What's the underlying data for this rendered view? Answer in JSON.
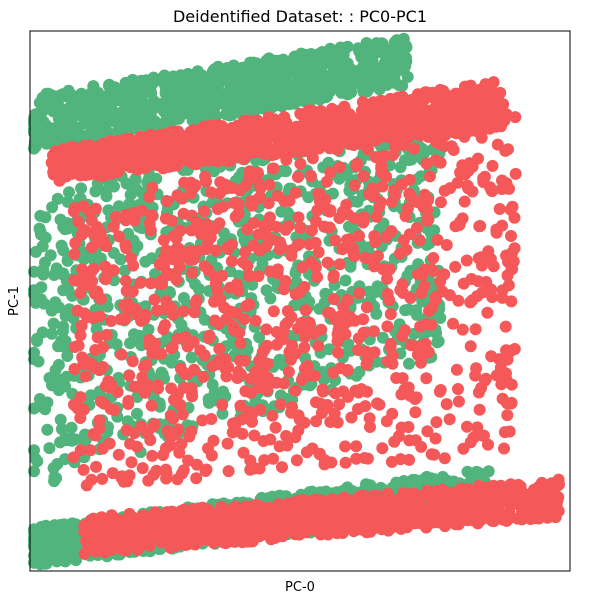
{
  "chart_data": {
    "type": "scatter",
    "title": "Deidentified Dataset: : PC0-PC1",
    "xlabel": "PC-0",
    "ylabel": "PC-1",
    "xlim": [
      0,
      100
    ],
    "ylim": [
      0,
      100
    ],
    "grid": false,
    "legend": "none",
    "x_ticks_visible": false,
    "y_ticks_visible": false,
    "series": [
      {
        "name": "green",
        "color": "#52b47d",
        "bands": [
          {
            "x_range": [
              0,
              70
            ],
            "y_start": [
              78,
              88
            ],
            "y_end": [
              90,
              99
            ]
          },
          {
            "x_range": [
              0,
              76
            ],
            "y_start": [
              15,
              70
            ],
            "y_end": [
              40,
              86
            ]
          },
          {
            "x_range": [
              0,
              85
            ],
            "y_start": [
              1,
              8
            ],
            "y_end": [
              11,
              19
            ]
          }
        ]
      },
      {
        "name": "red",
        "color": "#f55858",
        "bands": [
          {
            "x_range": [
              4,
              88
            ],
            "y_start": [
              72,
              78
            ],
            "y_end": [
              82,
              91
            ]
          },
          {
            "x_range": [
              8,
              90
            ],
            "y_start": [
              15,
              68
            ],
            "y_end": [
              22,
              85
            ]
          },
          {
            "x_range": [
              10,
              98
            ],
            "y_start": [
              3,
              10
            ],
            "y_end": [
              10,
              17
            ]
          }
        ]
      }
    ]
  }
}
